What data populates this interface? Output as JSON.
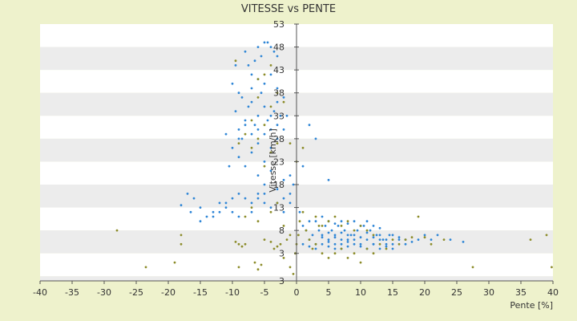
{
  "chart_data": {
    "type": "scatter",
    "title": "VITESSE vs PENTE",
    "xlabel": "Pente [%]",
    "ylabel": "Vitesse [km/h]",
    "xlim": [
      -40,
      40
    ],
    "ylim": [
      -3,
      53
    ],
    "x_ticks": [
      "-40",
      "-35",
      "-30",
      "-25",
      "-20",
      "-15",
      "-10",
      "-5",
      "0",
      "5",
      "10",
      "15",
      "20",
      "25",
      "30",
      "35",
      "40"
    ],
    "y_ticks": [
      "3",
      "3",
      "8",
      "13",
      "18",
      "23",
      "28",
      "33",
      "38",
      "43",
      "48",
      "53"
    ],
    "grid": "horizontal banded",
    "legend": "none",
    "colors": {
      "background": "#eef2cc",
      "plot_band_light": "#ffffff",
      "plot_band_dark": "#ececec",
      "series_blue": "#2f86d6",
      "series_olive": "#8c8c2a",
      "axis": "#555555"
    },
    "series": [
      {
        "color": "series_blue",
        "points": [
          [
            -10,
            40
          ],
          [
            -9.5,
            44
          ],
          [
            -9,
            38
          ],
          [
            -8.5,
            37
          ],
          [
            -8,
            47
          ],
          [
            -7.5,
            44
          ],
          [
            -7,
            42
          ],
          [
            -6.5,
            45
          ],
          [
            -6,
            48
          ],
          [
            -5.5,
            46
          ],
          [
            -5,
            49
          ],
          [
            -4.5,
            49
          ],
          [
            -4,
            48
          ],
          [
            -3.5,
            47
          ],
          [
            -3,
            46
          ],
          [
            -9.5,
            34
          ],
          [
            -9,
            30
          ],
          [
            -8.5,
            28
          ],
          [
            -8,
            32
          ],
          [
            -7.5,
            35
          ],
          [
            -7,
            36
          ],
          [
            -6.5,
            31
          ],
          [
            -6,
            33
          ],
          [
            -5.5,
            38
          ],
          [
            -5,
            35
          ],
          [
            -4.5,
            32
          ],
          [
            -4,
            30
          ],
          [
            -3.5,
            34
          ],
          [
            -3,
            36
          ],
          [
            -2.5,
            33
          ],
          [
            -10,
            26
          ],
          [
            -9,
            24
          ],
          [
            -8,
            22
          ],
          [
            -7,
            25
          ],
          [
            -6,
            27
          ],
          [
            -5,
            23
          ],
          [
            -4,
            26
          ],
          [
            -3,
            28
          ],
          [
            -2,
            30
          ],
          [
            -1.5,
            33
          ],
          [
            -6,
            20
          ],
          [
            -5,
            18
          ],
          [
            -4,
            21
          ],
          [
            -3,
            17
          ],
          [
            -2,
            19
          ],
          [
            -11,
            29
          ],
          [
            -10.5,
            22
          ],
          [
            -9,
            28
          ],
          [
            -8,
            31
          ],
          [
            -7,
            29
          ],
          [
            -6,
            30
          ],
          [
            -5,
            29
          ],
          [
            -4,
            33
          ],
          [
            -3,
            31
          ],
          [
            -5,
            40
          ],
          [
            -4,
            42
          ],
          [
            -6,
            41
          ],
          [
            -7,
            39
          ],
          [
            -3,
            39
          ],
          [
            -2,
            37
          ],
          [
            -18,
            13.5
          ],
          [
            -17,
            16
          ],
          [
            -16,
            15
          ],
          [
            -15,
            13
          ],
          [
            -14,
            11
          ],
          [
            -13,
            12
          ],
          [
            -12,
            14
          ],
          [
            -11,
            13
          ],
          [
            -10,
            15
          ],
          [
            -9,
            16
          ],
          [
            -8,
            15
          ],
          [
            -7,
            14
          ],
          [
            -6,
            16
          ],
          [
            -5,
            14
          ],
          [
            -4,
            13
          ],
          [
            -16.5,
            12
          ],
          [
            -15,
            10
          ],
          [
            -13,
            11
          ],
          [
            -12,
            12
          ],
          [
            -11,
            14
          ],
          [
            -10,
            12
          ],
          [
            -9,
            11
          ],
          [
            -7,
            12
          ],
          [
            -6,
            15
          ],
          [
            -5,
            16
          ],
          [
            -3,
            14
          ],
          [
            -2,
            15
          ],
          [
            -1,
            14
          ],
          [
            -1,
            16
          ],
          [
            -2,
            12
          ],
          [
            1,
            5
          ],
          [
            2,
            6
          ],
          [
            3,
            5
          ],
          [
            4,
            7
          ],
          [
            5,
            6
          ],
          [
            6,
            5
          ],
          [
            7,
            6
          ],
          [
            8,
            7
          ],
          [
            9,
            6
          ],
          [
            10,
            5
          ],
          [
            11,
            6
          ],
          [
            12,
            5
          ],
          [
            13,
            6
          ],
          [
            14,
            5
          ],
          [
            15,
            5
          ],
          [
            1.5,
            8
          ],
          [
            2.5,
            7
          ],
          [
            3.5,
            8
          ],
          [
            4.5,
            9
          ],
          [
            5.5,
            8
          ],
          [
            6.5,
            9
          ],
          [
            7.5,
            8
          ],
          [
            8.5,
            7
          ],
          [
            9.5,
            8
          ],
          [
            10.5,
            9
          ],
          [
            11.5,
            8
          ],
          [
            12.5,
            7
          ],
          [
            13.5,
            6
          ],
          [
            14.5,
            7
          ],
          [
            16,
            6
          ],
          [
            2,
            4.5
          ],
          [
            3,
            4
          ],
          [
            4,
            5
          ],
          [
            5,
            4.5
          ],
          [
            6,
            4
          ],
          [
            7,
            5
          ],
          [
            8,
            4.5
          ],
          [
            9,
            5
          ],
          [
            10,
            4.5
          ],
          [
            11,
            4
          ],
          [
            12,
            5
          ],
          [
            13,
            4
          ],
          [
            14,
            4.5
          ],
          [
            15,
            4
          ],
          [
            17,
            5
          ],
          [
            3,
            10
          ],
          [
            4,
            11
          ],
          [
            5,
            10
          ],
          [
            6,
            9.5
          ],
          [
            7,
            10
          ],
          [
            8,
            9.5
          ],
          [
            9,
            10
          ],
          [
            10,
            9
          ],
          [
            11,
            10
          ],
          [
            12,
            9
          ],
          [
            13,
            8.5
          ],
          [
            15,
            7
          ],
          [
            16,
            6.5
          ],
          [
            17,
            6
          ],
          [
            18,
            5.5
          ],
          [
            4,
            6.5
          ],
          [
            5,
            7.5
          ],
          [
            6,
            7
          ],
          [
            7,
            7.5
          ],
          [
            8,
            6
          ],
          [
            9,
            7
          ],
          [
            10,
            6.5
          ],
          [
            11,
            7.5
          ],
          [
            12,
            6.5
          ],
          [
            13,
            7
          ],
          [
            14,
            6
          ],
          [
            5,
            5.5
          ],
          [
            6,
            6.5
          ],
          [
            7,
            4
          ],
          [
            8,
            5.5
          ],
          [
            19,
            6
          ],
          [
            20,
            7
          ],
          [
            21,
            6
          ],
          [
            22,
            7
          ],
          [
            24,
            6
          ],
          [
            26,
            5.5
          ],
          [
            3,
            28
          ],
          [
            2,
            31
          ],
          [
            5,
            19
          ],
          [
            1,
            22
          ],
          [
            -1,
            20
          ],
          [
            -0.5,
            18
          ],
          [
            0.5,
            12
          ],
          [
            1,
            9
          ],
          [
            2,
            10
          ]
        ]
      },
      {
        "color": "series_olive",
        "points": [
          [
            -28,
            8
          ],
          [
            -23.5,
            0
          ],
          [
            -19,
            1
          ],
          [
            -18,
            5
          ],
          [
            -18,
            7
          ],
          [
            -9.5,
            5.5
          ],
          [
            -9,
            5
          ],
          [
            -8.5,
            4.5
          ],
          [
            -8,
            5
          ],
          [
            -6.5,
            1
          ],
          [
            -5.5,
            0.5
          ],
          [
            -5,
            6
          ],
          [
            -4,
            5.5
          ],
          [
            -3.5,
            4
          ],
          [
            -3,
            4.5
          ],
          [
            -9,
            0
          ],
          [
            -6,
            -0.5
          ],
          [
            -2,
            2
          ],
          [
            -1,
            0
          ],
          [
            -0.5,
            -1.5
          ],
          [
            -0.2,
            3
          ],
          [
            0,
            5
          ],
          [
            0.3,
            7
          ],
          [
            0.5,
            10
          ],
          [
            1,
            12
          ],
          [
            1.5,
            8
          ],
          [
            2,
            6
          ],
          [
            2.5,
            4
          ],
          [
            3,
            11
          ],
          [
            3.5,
            9
          ],
          [
            -2.5,
            5
          ],
          [
            -1.5,
            6
          ],
          [
            -1,
            7
          ],
          [
            -2,
            9
          ],
          [
            -3,
            14
          ],
          [
            -4,
            12
          ],
          [
            -6,
            10
          ],
          [
            -7,
            13
          ],
          [
            -8,
            11
          ],
          [
            -5,
            22
          ],
          [
            -4,
            25
          ],
          [
            -3,
            27
          ],
          [
            -6,
            28
          ],
          [
            -7,
            26
          ],
          [
            -5,
            31
          ],
          [
            -4,
            35
          ],
          [
            -6,
            37
          ],
          [
            -5,
            42
          ],
          [
            -3,
            38
          ],
          [
            -2,
            36
          ],
          [
            -7,
            32
          ],
          [
            -8,
            29
          ],
          [
            -9,
            27
          ],
          [
            -9.5,
            45
          ],
          [
            -6,
            41
          ],
          [
            -4,
            44
          ],
          [
            -1,
            27
          ],
          [
            0,
            23
          ],
          [
            1,
            26
          ],
          [
            3,
            5
          ],
          [
            4,
            3
          ],
          [
            5,
            2
          ],
          [
            6,
            3
          ],
          [
            7,
            4
          ],
          [
            8,
            2
          ],
          [
            9,
            3
          ],
          [
            10,
            1
          ],
          [
            11,
            4
          ],
          [
            12,
            3
          ],
          [
            13,
            5
          ],
          [
            14,
            4
          ],
          [
            15,
            6
          ],
          [
            16,
            5
          ],
          [
            17,
            6
          ],
          [
            18,
            6.5
          ],
          [
            4,
            9
          ],
          [
            5,
            10
          ],
          [
            6,
            11
          ],
          [
            7,
            9
          ],
          [
            8,
            10
          ],
          [
            9,
            8
          ],
          [
            10,
            9
          ],
          [
            11,
            8
          ],
          [
            12,
            7
          ],
          [
            19,
            11
          ],
          [
            20,
            6.5
          ],
          [
            21,
            5
          ],
          [
            23,
            6
          ],
          [
            27.5,
            0
          ],
          [
            36.5,
            6
          ],
          [
            39,
            7
          ],
          [
            39.8,
            0
          ]
        ]
      }
    ]
  }
}
